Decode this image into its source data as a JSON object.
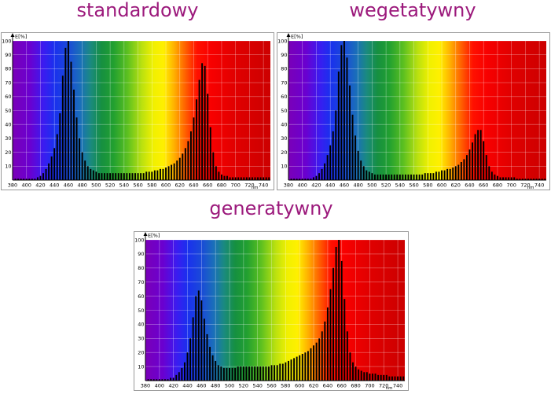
{
  "colors": {
    "title": "#9c1a7c",
    "bars": "#000000"
  },
  "chart_data": [
    {
      "type": "bar",
      "title": "standardowy",
      "ylabel": "E[%]",
      "xlabel": "nm",
      "xlim": [
        380,
        750
      ],
      "ylim": [
        0,
        100
      ],
      "x_ticks": [
        380,
        400,
        420,
        440,
        460,
        480,
        500,
        520,
        540,
        560,
        580,
        600,
        620,
        640,
        660,
        680,
        700,
        720,
        740
      ],
      "y_ticks": [
        10,
        20,
        30,
        40,
        50,
        60,
        70,
        80,
        90,
        100
      ],
      "x": [
        384,
        388,
        392,
        396,
        400,
        404,
        408,
        412,
        416,
        420,
        424,
        428,
        432,
        436,
        440,
        444,
        448,
        452,
        456,
        460,
        464,
        468,
        472,
        476,
        480,
        484,
        488,
        492,
        496,
        500,
        504,
        508,
        512,
        516,
        520,
        524,
        528,
        532,
        536,
        540,
        544,
        548,
        552,
        556,
        560,
        564,
        568,
        572,
        576,
        580,
        584,
        588,
        592,
        596,
        600,
        604,
        608,
        612,
        616,
        620,
        624,
        628,
        632,
        636,
        640,
        644,
        648,
        652,
        656,
        660,
        664,
        668,
        672,
        676,
        680,
        684,
        688,
        692,
        696,
        700,
        704,
        708,
        712,
        716,
        720,
        724,
        728,
        732,
        736,
        740,
        744,
        748
      ],
      "values": [
        1,
        1,
        1,
        1,
        1,
        1,
        1,
        1,
        2,
        3,
        5,
        8,
        12,
        17,
        23,
        33,
        48,
        75,
        95,
        100,
        85,
        65,
        45,
        30,
        20,
        14,
        10,
        8,
        7,
        6,
        5,
        5,
        5,
        5,
        5,
        5,
        5,
        5,
        5,
        5,
        5,
        5,
        5,
        5,
        5,
        5,
        5,
        6,
        6,
        6,
        7,
        7,
        8,
        8,
        9,
        10,
        11,
        12,
        14,
        16,
        19,
        23,
        28,
        35,
        45,
        58,
        72,
        84,
        82,
        62,
        38,
        20,
        10,
        6,
        4,
        3,
        3,
        2,
        2,
        2,
        2,
        2,
        2,
        2,
        2,
        2,
        2,
        2,
        2,
        2,
        2,
        2
      ]
    },
    {
      "type": "bar",
      "title": "wegetatywny",
      "ylabel": "E[%]",
      "xlabel": "nm",
      "xlim": [
        380,
        750
      ],
      "ylim": [
        0,
        100
      ],
      "x_ticks": [
        380,
        400,
        420,
        440,
        460,
        480,
        500,
        520,
        540,
        560,
        580,
        600,
        620,
        640,
        660,
        680,
        700,
        720,
        740
      ],
      "y_ticks": [
        10,
        20,
        30,
        40,
        50,
        60,
        70,
        80,
        90,
        100
      ],
      "x": [
        384,
        388,
        392,
        396,
        400,
        404,
        408,
        412,
        416,
        420,
        424,
        428,
        432,
        436,
        440,
        444,
        448,
        452,
        456,
        460,
        464,
        468,
        472,
        476,
        480,
        484,
        488,
        492,
        496,
        500,
        504,
        508,
        512,
        516,
        520,
        524,
        528,
        532,
        536,
        540,
        544,
        548,
        552,
        556,
        560,
        564,
        568,
        572,
        576,
        580,
        584,
        588,
        592,
        596,
        600,
        604,
        608,
        612,
        616,
        620,
        624,
        628,
        632,
        636,
        640,
        644,
        648,
        652,
        656,
        660,
        664,
        668,
        672,
        676,
        680,
        684,
        688,
        692,
        696,
        700,
        704,
        708,
        712,
        716,
        720,
        724,
        728,
        732,
        736,
        740,
        744,
        748
      ],
      "values": [
        1,
        1,
        1,
        1,
        1,
        1,
        1,
        1,
        2,
        3,
        5,
        8,
        12,
        18,
        25,
        35,
        50,
        78,
        97,
        100,
        88,
        68,
        47,
        32,
        21,
        14,
        10,
        7,
        6,
        5,
        4,
        4,
        4,
        4,
        4,
        4,
        4,
        4,
        4,
        4,
        4,
        4,
        4,
        4,
        4,
        4,
        4,
        4,
        5,
        5,
        5,
        5,
        6,
        6,
        7,
        7,
        8,
        8,
        9,
        10,
        11,
        13,
        15,
        18,
        22,
        27,
        33,
        36,
        36,
        28,
        18,
        10,
        6,
        4,
        3,
        2,
        2,
        2,
        2,
        2,
        2,
        1,
        1,
        1,
        1,
        1,
        1,
        1,
        1,
        1,
        1,
        1
      ]
    },
    {
      "type": "bar",
      "title": "generatywny",
      "ylabel": "E[%]",
      "xlabel": "nm",
      "xlim": [
        380,
        750
      ],
      "ylim": [
        0,
        100
      ],
      "x_ticks": [
        380,
        400,
        420,
        440,
        460,
        480,
        500,
        520,
        540,
        560,
        580,
        600,
        620,
        640,
        660,
        680,
        700,
        720,
        740
      ],
      "y_ticks": [
        10,
        20,
        30,
        40,
        50,
        60,
        70,
        80,
        90,
        100
      ],
      "x": [
        384,
        388,
        392,
        396,
        400,
        404,
        408,
        412,
        416,
        420,
        424,
        428,
        432,
        436,
        440,
        444,
        448,
        452,
        456,
        460,
        464,
        468,
        472,
        476,
        480,
        484,
        488,
        492,
        496,
        500,
        504,
        508,
        512,
        516,
        520,
        524,
        528,
        532,
        536,
        540,
        544,
        548,
        552,
        556,
        560,
        564,
        568,
        572,
        576,
        580,
        584,
        588,
        592,
        596,
        600,
        604,
        608,
        612,
        616,
        620,
        624,
        628,
        632,
        636,
        640,
        644,
        648,
        652,
        656,
        660,
        664,
        668,
        672,
        676,
        680,
        684,
        688,
        692,
        696,
        700,
        704,
        708,
        712,
        716,
        720,
        724,
        728,
        732,
        736,
        740,
        744,
        748
      ],
      "values": [
        1,
        1,
        1,
        1,
        1,
        1,
        1,
        1,
        2,
        2,
        4,
        6,
        9,
        13,
        20,
        30,
        45,
        60,
        64,
        57,
        44,
        33,
        24,
        18,
        14,
        11,
        10,
        9,
        9,
        9,
        9,
        9,
        10,
        10,
        10,
        10,
        10,
        10,
        10,
        10,
        10,
        10,
        10,
        10,
        11,
        11,
        11,
        12,
        12,
        13,
        14,
        15,
        16,
        17,
        18,
        19,
        20,
        21,
        23,
        25,
        27,
        30,
        35,
        42,
        52,
        65,
        80,
        95,
        100,
        85,
        58,
        35,
        20,
        13,
        10,
        8,
        7,
        6,
        6,
        5,
        5,
        5,
        4,
        4,
        4,
        4,
        3,
        3,
        3,
        3,
        3,
        3
      ]
    }
  ]
}
